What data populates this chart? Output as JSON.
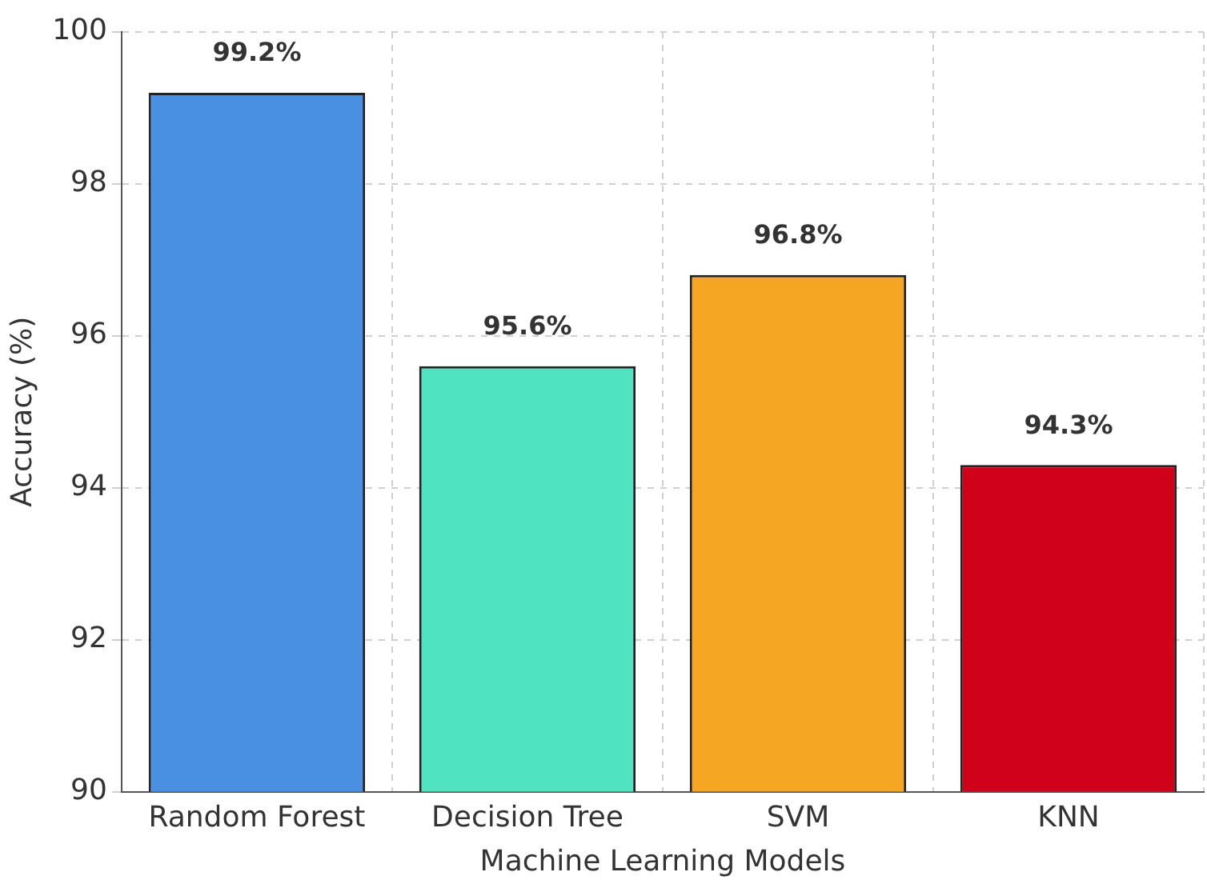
{
  "chart_data": {
    "type": "bar",
    "xlabel": "Machine Learning Models",
    "ylabel": "Accuracy (%)",
    "categories": [
      "Random Forest",
      "Decision Tree",
      "SVM",
      "KNN"
    ],
    "values": [
      99.2,
      95.6,
      96.8,
      94.3
    ],
    "colors": [
      "#4a90e2",
      "#50e3c2",
      "#f5a623",
      "#d0021b"
    ],
    "value_labels": [
      "99.2%",
      "95.6%",
      "96.8%",
      "94.3%"
    ],
    "ylim": [
      90,
      100
    ],
    "yticks": [
      90,
      92,
      94,
      96,
      98,
      100
    ],
    "grid": true,
    "legend": false
  }
}
